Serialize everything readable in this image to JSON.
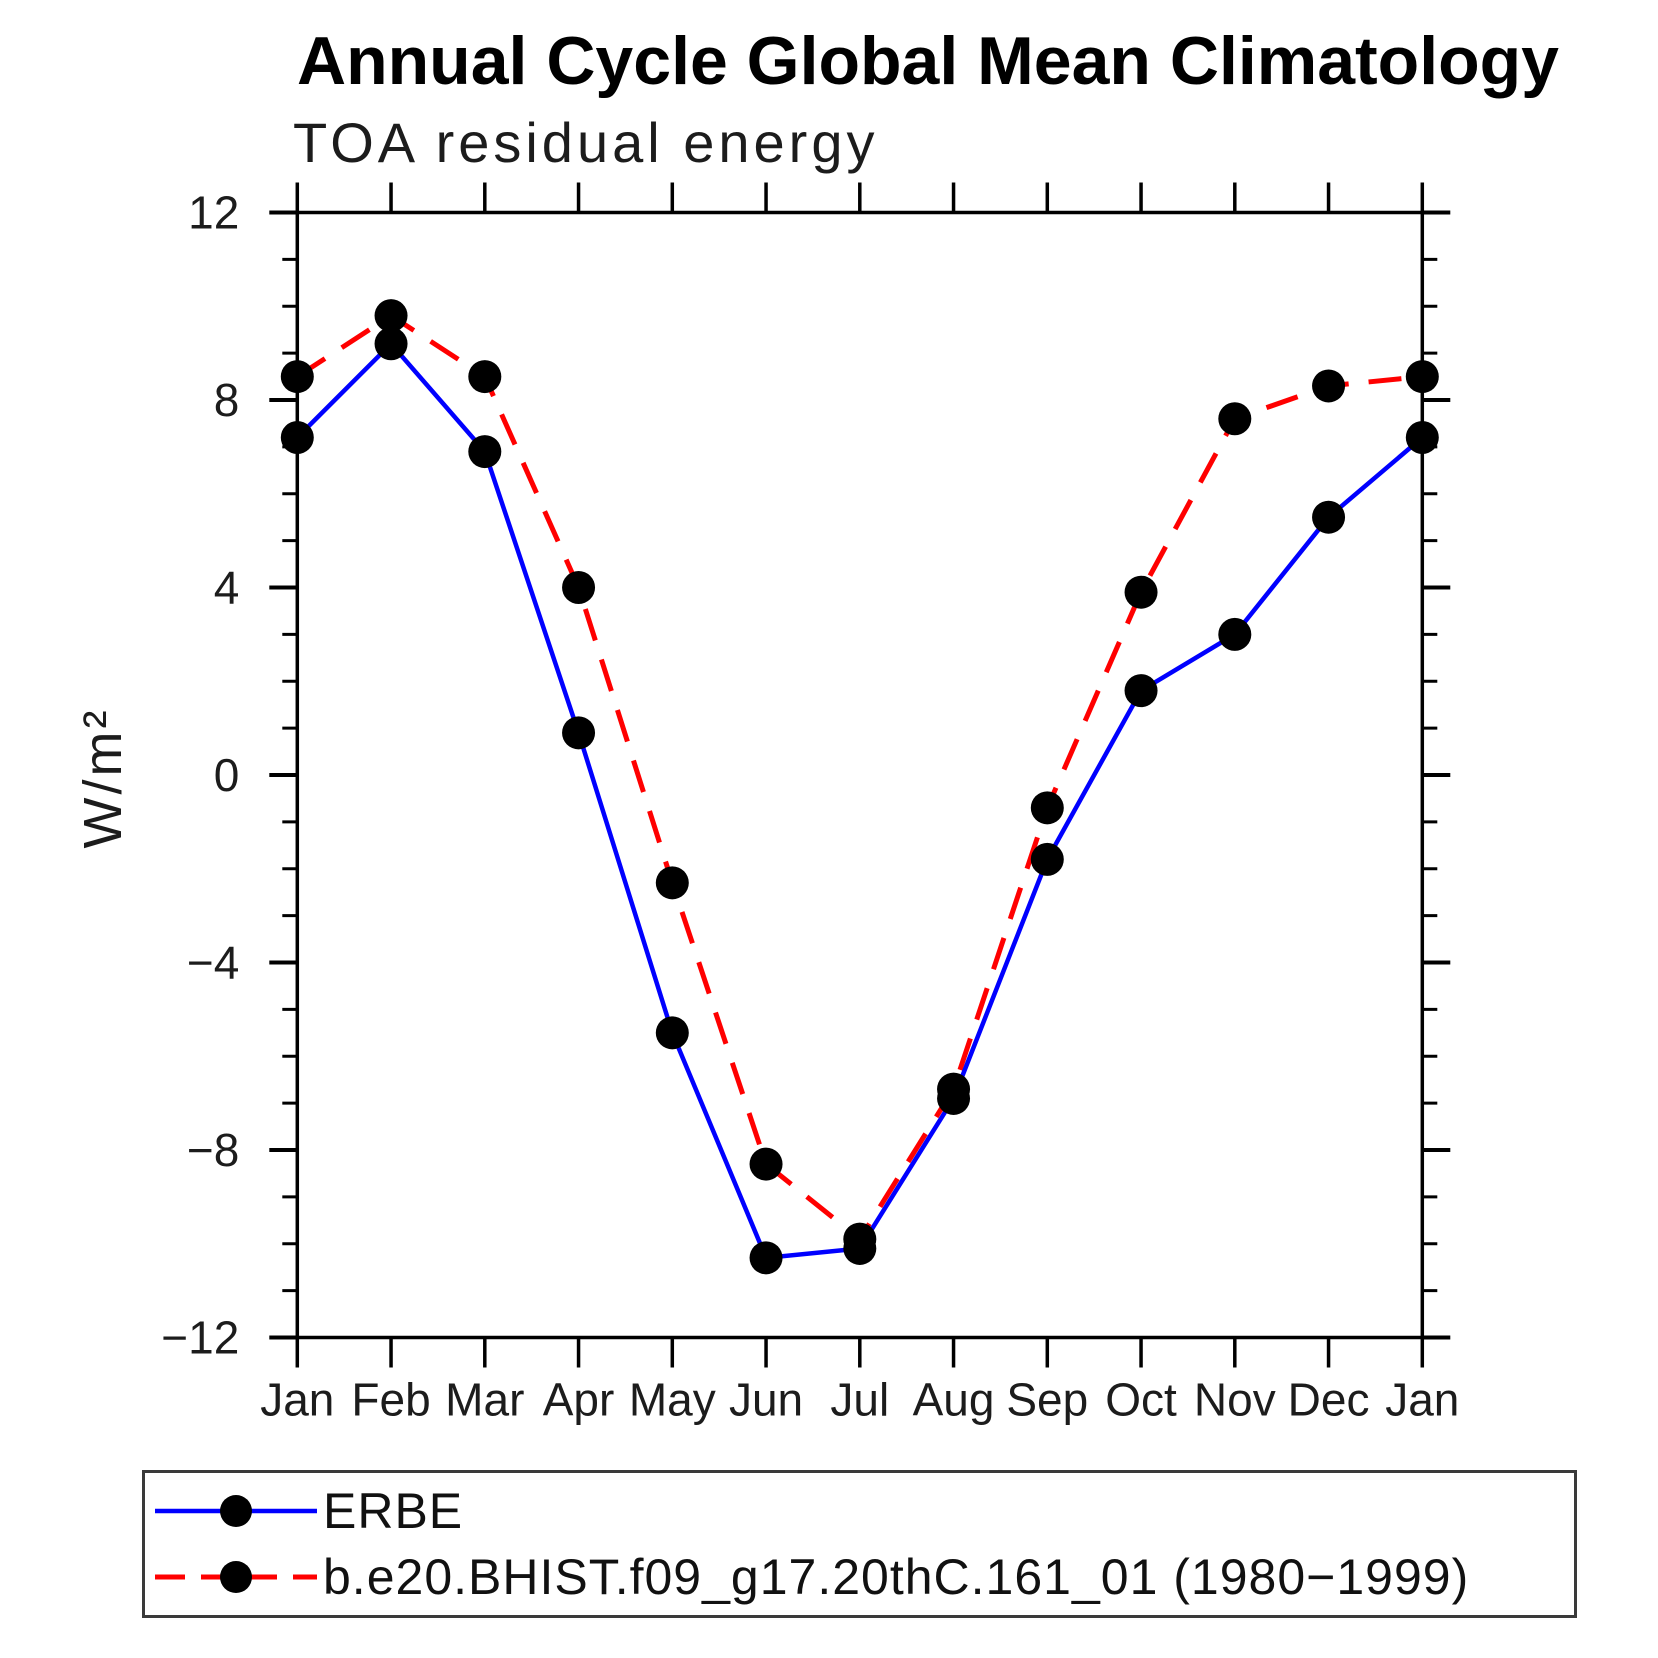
{
  "chart_data": {
    "type": "line",
    "title": "Annual Cycle Global Mean Climatology",
    "subtitle": "TOA residual energy",
    "ylabel": "W/m²",
    "xlabel": "",
    "categories": [
      "Jan",
      "Feb",
      "Mar",
      "Apr",
      "May",
      "Jun",
      "Jul",
      "Aug",
      "Sep",
      "Oct",
      "Nov",
      "Dec",
      "Jan"
    ],
    "ylim": [
      -12,
      12
    ],
    "y_major_tick_step": 4,
    "y_minor_tick_step": 1,
    "y_major_tick_labels": [
      "12",
      "8",
      "4",
      "0",
      "−4",
      "−8",
      "−12"
    ],
    "grid": false,
    "legend_position": "bottom",
    "background_color": "#ffffff",
    "axis_color": "#000000",
    "text_color": "#1c1c1c",
    "marker_color": "#000000",
    "series": [
      {
        "name": "ERBE",
        "color": "#0000ff",
        "line_style": "solid",
        "marker": "circle",
        "values": [
          7.2,
          9.2,
          6.9,
          0.9,
          -5.5,
          -10.3,
          -10.1,
          -6.9,
          -1.8,
          1.8,
          3.0,
          5.5,
          7.2
        ]
      },
      {
        "name": "b.e20.BHIST.f09_g17.20thC.161_01 (1980−1999)",
        "color": "#ff0000",
        "line_style": "dashed",
        "marker": "circle",
        "values": [
          8.5,
          9.8,
          8.5,
          4.0,
          -2.3,
          -8.3,
          -9.9,
          -6.7,
          -0.7,
          3.9,
          7.6,
          8.3,
          8.5
        ]
      }
    ]
  }
}
